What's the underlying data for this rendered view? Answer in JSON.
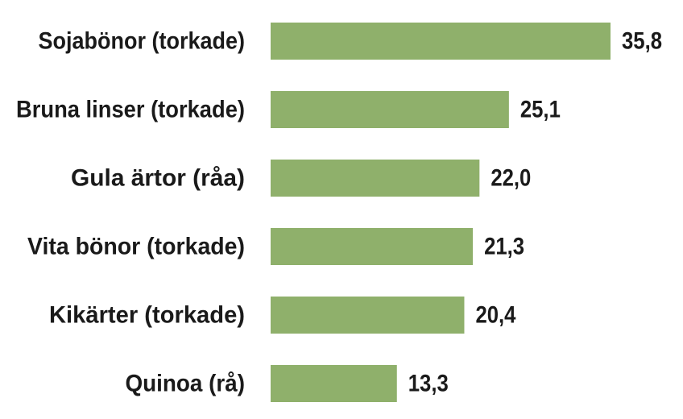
{
  "chart_data": {
    "type": "bar",
    "orientation": "horizontal",
    "categories": [
      "Sojabönor (torkade)",
      "Bruna linser (torkade)",
      "Gula ärtor (råa)",
      "Vita bönor (torkade)",
      "Kikärter (torkade)",
      "Quinoa (rå)"
    ],
    "values": [
      35.8,
      25.1,
      22.0,
      21.3,
      20.4,
      13.3
    ],
    "value_labels": [
      "35,8",
      "25,1",
      "22,0",
      "21,3",
      "20,4",
      "13,3"
    ],
    "xlim": [
      0,
      35.8
    ],
    "grid": false,
    "legend": "none",
    "bar_color": "#8fb06b",
    "text_color": "#1a1a1a"
  }
}
